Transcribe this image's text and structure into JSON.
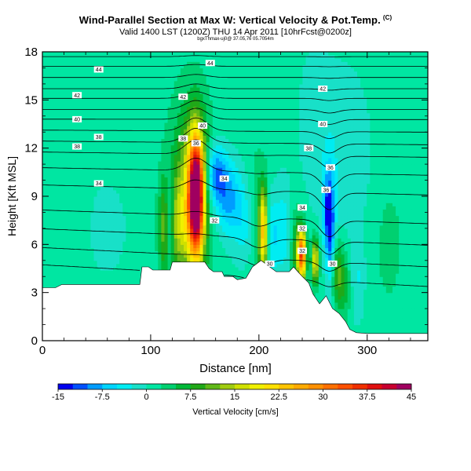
{
  "header": {
    "title": "Wind-Parallel Section at Max W: Vertical Velocity & Pot.Temp.",
    "title_mark": "(C)",
    "subtitle": "Valid 1400 LST (1200Z) THU 14 Apr 2011 [10hrFcst@0200z]",
    "subsubtitle": "bgxThmax-uj0@ 37.05,76 05.7054m"
  },
  "chart_data": {
    "type": "heatmap",
    "xlabel": "Distance [nm]",
    "ylabel": "Height [Kft MSL]",
    "xlim": [
      0,
      356
    ],
    "ylim": [
      0,
      18
    ],
    "xticks": [
      0,
      100,
      200,
      300
    ],
    "yticks": [
      0,
      3,
      6,
      9,
      12,
      15,
      18
    ],
    "colorbar": {
      "label": "Vertical Velocity [cm/s]",
      "ticks": [
        "-15",
        "-7.5",
        "0",
        "7.5",
        "15",
        "22.5",
        "30",
        "37.5",
        "45"
      ],
      "bins": [
        {
          "from": -15,
          "to": -12.5,
          "color": "#0000ee"
        },
        {
          "from": -12.5,
          "to": -10,
          "color": "#0050ff"
        },
        {
          "from": -10,
          "to": -7.5,
          "color": "#009cff"
        },
        {
          "from": -7.5,
          "to": -5,
          "color": "#00d4ff"
        },
        {
          "from": -5,
          "to": -2.5,
          "color": "#00ecf2"
        },
        {
          "from": -2.5,
          "to": 0,
          "color": "#18e0c8"
        },
        {
          "from": 0,
          "to": 2.5,
          "color": "#00e6a2"
        },
        {
          "from": 2.5,
          "to": 5,
          "color": "#00d070"
        },
        {
          "from": 5,
          "to": 7.5,
          "color": "#00b838"
        },
        {
          "from": 7.5,
          "to": 10,
          "color": "#20a818"
        },
        {
          "from": 10,
          "to": 12.5,
          "color": "#60b818"
        },
        {
          "from": 12.5,
          "to": 15,
          "color": "#a0cc10"
        },
        {
          "from": 15,
          "to": 17.5,
          "color": "#d0e000"
        },
        {
          "from": 17.5,
          "to": 20,
          "color": "#f0f000"
        },
        {
          "from": 20,
          "to": 22.5,
          "color": "#ffe000"
        },
        {
          "from": 22.5,
          "to": 25,
          "color": "#ffc400"
        },
        {
          "from": 25,
          "to": 27.5,
          "color": "#ffaa00"
        },
        {
          "from": 27.5,
          "to": 30,
          "color": "#ff9000"
        },
        {
          "from": 30,
          "to": 32.5,
          "color": "#ff7000"
        },
        {
          "from": 32.5,
          "to": 35,
          "color": "#ff5000"
        },
        {
          "from": 35,
          "to": 37.5,
          "color": "#f03000"
        },
        {
          "from": 37.5,
          "to": 40,
          "color": "#e01010"
        },
        {
          "from": 40,
          "to": 42.5,
          "color": "#c80030"
        },
        {
          "from": 42.5,
          "to": 45,
          "color": "#a00060"
        }
      ]
    },
    "terrain_top_kft": [
      [
        0,
        3.3
      ],
      [
        12,
        3.3
      ],
      [
        18,
        3.5
      ],
      [
        90,
        3.5
      ],
      [
        92,
        4.6
      ],
      [
        98,
        4.6
      ],
      [
        102,
        4.4
      ],
      [
        118,
        4.4
      ],
      [
        120,
        4.9
      ],
      [
        150,
        4.9
      ],
      [
        154,
        4.5
      ],
      [
        158,
        4.3
      ],
      [
        166,
        4.3
      ],
      [
        168,
        4.0
      ],
      [
        176,
        4.0
      ],
      [
        180,
        3.8
      ],
      [
        188,
        3.9
      ],
      [
        194,
        4.6
      ],
      [
        202,
        5.0
      ],
      [
        210,
        4.6
      ],
      [
        216,
        4.3
      ],
      [
        228,
        4.3
      ],
      [
        232,
        4.6
      ],
      [
        240,
        4.0
      ],
      [
        246,
        3.6
      ],
      [
        250,
        2.9
      ],
      [
        256,
        2.3
      ],
      [
        262,
        2.8
      ],
      [
        268,
        2.0
      ],
      [
        274,
        1.7
      ],
      [
        280,
        1.2
      ],
      [
        284,
        0.7
      ],
      [
        290,
        0.5
      ],
      [
        300,
        0.45
      ],
      [
        356,
        0.45
      ]
    ],
    "background_w_cms": 1.0,
    "w_features": [
      {
        "x": 142,
        "z": 9.0,
        "sx": 5,
        "sz": 2.6,
        "w": 46
      },
      {
        "x": 137,
        "z": 9.5,
        "sx": 13,
        "sz": 3.8,
        "w": 12
      },
      {
        "x": 160,
        "z": 10.4,
        "sx": 7,
        "sz": 1.3,
        "w": -12
      },
      {
        "x": 172,
        "z": 8.8,
        "sx": 9,
        "sz": 1.6,
        "w": -9
      },
      {
        "x": 190,
        "z": 7.2,
        "sx": 8,
        "sz": 2.0,
        "w": -6
      },
      {
        "x": 118,
        "z": 7.6,
        "sx": 3,
        "sz": 2.0,
        "w": -8
      },
      {
        "x": 124,
        "z": 7.2,
        "sx": 9,
        "sz": 2.0,
        "w": 9
      },
      {
        "x": 112,
        "z": 6.8,
        "sx": 3,
        "sz": 2.2,
        "w": 6
      },
      {
        "x": 204,
        "z": 6.8,
        "sx": 3,
        "sz": 1.9,
        "w": 22
      },
      {
        "x": 196,
        "z": 7.5,
        "sx": 7,
        "sz": 3.0,
        "w": 5
      },
      {
        "x": 212,
        "z": 6.5,
        "sx": 4,
        "sz": 1.8,
        "w": -6
      },
      {
        "x": 222,
        "z": 6.8,
        "sx": 5,
        "sz": 2.2,
        "w": -5
      },
      {
        "x": 240,
        "z": 5.4,
        "sx": 2.5,
        "sz": 1.0,
        "w": 30
      },
      {
        "x": 236,
        "z": 5.6,
        "sx": 4,
        "sz": 1.6,
        "w": 10
      },
      {
        "x": 252,
        "z": 5.0,
        "sx": 2.5,
        "sz": 1.0,
        "w": 18
      },
      {
        "x": 266,
        "z": 7.0,
        "sx": 3,
        "sz": 2.4,
        "w": -13
      },
      {
        "x": 262,
        "z": 8.4,
        "sx": 3,
        "sz": 1.6,
        "w": -7
      },
      {
        "x": 272,
        "z": 4.4,
        "sx": 4,
        "sz": 1.3,
        "w": 7
      },
      {
        "x": 278,
        "z": 3.5,
        "sx": 6,
        "sz": 1.6,
        "w": 6
      },
      {
        "x": 290,
        "z": 3.8,
        "sx": 5,
        "sz": 1.8,
        "w": -4
      },
      {
        "x": 320,
        "z": 6.0,
        "sx": 10,
        "sz": 3.0,
        "w": 2.5
      },
      {
        "x": 30,
        "z": 9.0,
        "sx": 6,
        "sz": 3.0,
        "w": 1.5
      },
      {
        "x": 60,
        "z": 7.0,
        "sx": 18,
        "sz": 3.0,
        "w": -1.5
      },
      {
        "x": 275,
        "z": 11.5,
        "sx": 20,
        "sz": 4.0,
        "w": -3
      },
      {
        "x": 250,
        "z": 14.5,
        "sx": 10,
        "sz": 3.0,
        "w": -1.5
      }
    ],
    "theta_isentropes_kft": [
      {
        "theta": "30",
        "z": 4.5
      },
      {
        "theta": "31",
        "z": 5.6
      },
      {
        "theta": "32",
        "z": 6.8
      },
      {
        "theta": "33",
        "z": 8.0
      },
      {
        "theta": "34",
        "z": 9.6
      },
      {
        "theta": "35",
        "z": 10.7
      },
      {
        "theta": "36",
        "z": 11.7
      },
      {
        "theta": "37",
        "z": 12.4
      },
      {
        "theta": "38",
        "z": 13.1
      },
      {
        "theta": "39",
        "z": 13.8
      },
      {
        "theta": "40",
        "z": 14.4
      },
      {
        "theta": "41",
        "z": 15.1
      },
      {
        "theta": "42",
        "z": 15.7
      },
      {
        "theta": "43",
        "z": 16.4
      },
      {
        "theta": "44",
        "z": 17.1
      },
      {
        "theta": "45",
        "z": 17.7
      }
    ],
    "contour_labels": [
      {
        "text": "44",
        "x": 52,
        "z": 16.9
      },
      {
        "text": "44",
        "x": 155,
        "z": 17.3
      },
      {
        "text": "42",
        "x": 32,
        "z": 15.3
      },
      {
        "text": "42",
        "x": 130,
        "z": 15.2
      },
      {
        "text": "42",
        "x": 259,
        "z": 15.7
      },
      {
        "text": "40",
        "x": 32,
        "z": 13.8
      },
      {
        "text": "40",
        "x": 148,
        "z": 13.4
      },
      {
        "text": "40",
        "x": 259,
        "z": 13.5
      },
      {
        "text": "38",
        "x": 32,
        "z": 12.1
      },
      {
        "text": "38",
        "x": 52,
        "z": 12.7
      },
      {
        "text": "38",
        "x": 130,
        "z": 12.6
      },
      {
        "text": "38",
        "x": 246,
        "z": 12.0
      },
      {
        "text": "36",
        "x": 142,
        "z": 12.3
      },
      {
        "text": "36",
        "x": 266,
        "z": 10.8
      },
      {
        "text": "36",
        "x": 262,
        "z": 9.4
      },
      {
        "text": "34",
        "x": 52,
        "z": 9.8
      },
      {
        "text": "34",
        "x": 168,
        "z": 10.1
      },
      {
        "text": "34",
        "x": 240,
        "z": 8.3
      },
      {
        "text": "32",
        "x": 159,
        "z": 7.5
      },
      {
        "text": "32",
        "x": 240,
        "z": 7.0
      },
      {
        "text": "32",
        "x": 240,
        "z": 5.6
      },
      {
        "text": "30",
        "x": 210,
        "z": 4.8
      },
      {
        "text": "30",
        "x": 268,
        "z": 4.8
      }
    ]
  }
}
